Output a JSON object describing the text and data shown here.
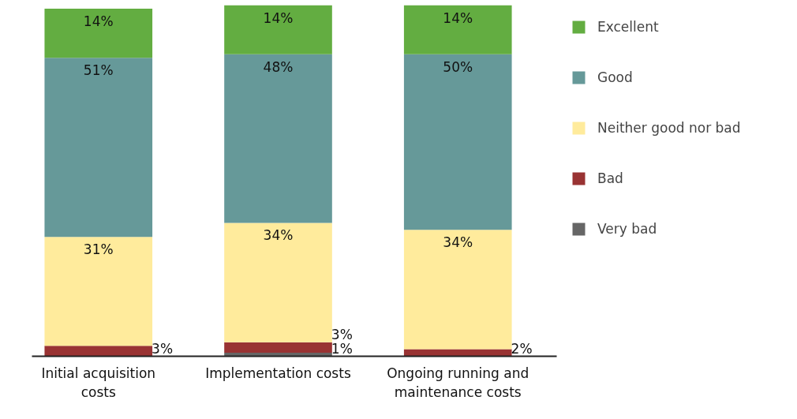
{
  "chart_data": {
    "type": "bar",
    "stacked": true,
    "categories": [
      "Initial acquisition costs",
      "Implementation costs",
      "Ongoing running and maintenance costs"
    ],
    "series": [
      {
        "name": "Very bad",
        "color": "#666666",
        "values": [
          null,
          1,
          null
        ],
        "value_labels": [
          null,
          "1%",
          null
        ]
      },
      {
        "name": "Bad",
        "color": "#993333",
        "values": [
          3,
          3,
          2
        ],
        "value_labels": [
          "3%",
          "3%",
          "2%"
        ]
      },
      {
        "name": "Neither good nor bad",
        "color": "#ffeb9c",
        "values": [
          31,
          34,
          34
        ],
        "value_labels": [
          "31%",
          "34%",
          "34%"
        ]
      },
      {
        "name": "Good",
        "color": "#669999",
        "values": [
          51,
          48,
          50
        ],
        "value_labels": [
          "51%",
          "48%",
          "50%"
        ]
      },
      {
        "name": "Excellent",
        "color": "#63ad41",
        "values": [
          14,
          14,
          14
        ],
        "value_labels": [
          "14%",
          "14%",
          "14%"
        ]
      }
    ],
    "legend": "right",
    "grid": false
  }
}
